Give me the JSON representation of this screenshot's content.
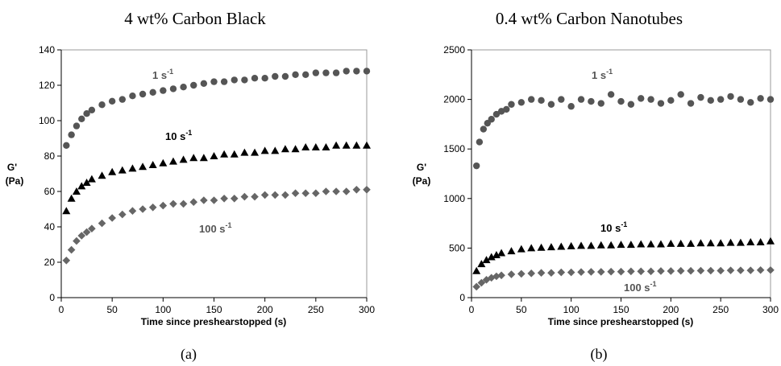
{
  "chart_data": [
    {
      "type": "scatter",
      "title": "4 wt% Carbon Black",
      "caption": "(a)",
      "xlabel": "Time since preshearstopped (s)",
      "ylabel_line1": "G'",
      "ylabel_line2": "(Pa)",
      "xlim": [
        0,
        300
      ],
      "ylim": [
        0,
        140
      ],
      "xticks": [
        0,
        50,
        100,
        150,
        200,
        250,
        300
      ],
      "yticks": [
        0,
        20,
        40,
        60,
        80,
        100,
        120,
        140
      ],
      "grid": false,
      "series": [
        {
          "name": "1 s-1",
          "label_base": "1 s",
          "label_sup": "-1",
          "marker": "circle",
          "color": "#555555",
          "x": [
            5,
            10,
            15,
            20,
            25,
            30,
            40,
            50,
            60,
            70,
            80,
            90,
            100,
            110,
            120,
            130,
            140,
            150,
            160,
            170,
            180,
            190,
            200,
            210,
            220,
            230,
            240,
            250,
            260,
            270,
            280,
            290,
            300
          ],
          "y": [
            86,
            92,
            97,
            101,
            104,
            106,
            109,
            111,
            112,
            114,
            115,
            116,
            117,
            118,
            119,
            120,
            121,
            122,
            122,
            123,
            123,
            124,
            124,
            125,
            125,
            126,
            126,
            127,
            127,
            127,
            128,
            128,
            128
          ]
        },
        {
          "name": "10 s-1",
          "label_base": "10 s",
          "label_sup": "-1",
          "marker": "triangle",
          "color": "#000000",
          "x": [
            5,
            10,
            15,
            20,
            25,
            30,
            40,
            50,
            60,
            70,
            80,
            90,
            100,
            110,
            120,
            130,
            140,
            150,
            160,
            170,
            180,
            190,
            200,
            210,
            220,
            230,
            240,
            250,
            260,
            270,
            280,
            290,
            300
          ],
          "y": [
            49,
            56,
            60,
            63,
            65,
            67,
            69,
            71,
            72,
            73,
            74,
            75,
            76,
            77,
            78,
            79,
            79,
            80,
            81,
            81,
            82,
            82,
            83,
            83,
            84,
            84,
            85,
            85,
            85,
            86,
            86,
            86,
            86
          ]
        },
        {
          "name": "100 s-1",
          "label_base": "100 s",
          "label_sup": "-1",
          "marker": "diamond",
          "color": "#666666",
          "x": [
            5,
            10,
            15,
            20,
            25,
            30,
            40,
            50,
            60,
            70,
            80,
            90,
            100,
            110,
            120,
            130,
            140,
            150,
            160,
            170,
            180,
            190,
            200,
            210,
            220,
            230,
            240,
            250,
            260,
            270,
            280,
            290,
            300
          ],
          "y": [
            21,
            27,
            32,
            35,
            37,
            39,
            42,
            45,
            47,
            49,
            50,
            51,
            52,
            53,
            53,
            54,
            55,
            55,
            56,
            56,
            57,
            57,
            58,
            58,
            58,
            59,
            59,
            59,
            60,
            60,
            60,
            61,
            61
          ]
        }
      ]
    },
    {
      "type": "scatter",
      "title": "0.4 wt% Carbon Nanotubes",
      "caption": "(b)",
      "xlabel": "Time since preshearstopped (s)",
      "ylabel_line1": "G'",
      "ylabel_line2": "(Pa)",
      "xlim": [
        0,
        300
      ],
      "ylim": [
        0,
        2500
      ],
      "xticks": [
        0,
        50,
        100,
        150,
        200,
        250,
        300
      ],
      "yticks": [
        0,
        500,
        1000,
        1500,
        2000,
        2500
      ],
      "grid": false,
      "series": [
        {
          "name": "1 s-1",
          "label_base": "1 s",
          "label_sup": "-1",
          "marker": "circle",
          "color": "#555555",
          "x": [
            5,
            8,
            12,
            16,
            20,
            25,
            30,
            35,
            40,
            50,
            60,
            70,
            80,
            90,
            100,
            110,
            120,
            130,
            140,
            150,
            160,
            170,
            180,
            190,
            200,
            210,
            220,
            230,
            240,
            250,
            260,
            270,
            280,
            290,
            300
          ],
          "y": [
            1330,
            1570,
            1700,
            1760,
            1800,
            1850,
            1880,
            1900,
            1950,
            1970,
            2000,
            1990,
            1950,
            2000,
            1930,
            2000,
            1980,
            1960,
            2050,
            1980,
            1950,
            2010,
            2000,
            1960,
            1990,
            2050,
            1960,
            2020,
            1990,
            2000,
            2030,
            2000,
            1970,
            2010,
            2000
          ]
        },
        {
          "name": "10 s-1",
          "label_base": "10 s",
          "label_sup": "-1",
          "marker": "triangle",
          "color": "#000000",
          "x": [
            5,
            10,
            15,
            20,
            25,
            30,
            40,
            50,
            60,
            70,
            80,
            90,
            100,
            110,
            120,
            130,
            140,
            150,
            160,
            170,
            180,
            190,
            200,
            210,
            220,
            230,
            240,
            250,
            260,
            270,
            280,
            290,
            300
          ],
          "y": [
            270,
            340,
            380,
            410,
            430,
            450,
            470,
            490,
            500,
            505,
            510,
            515,
            520,
            525,
            525,
            530,
            530,
            535,
            535,
            540,
            540,
            540,
            545,
            545,
            545,
            550,
            550,
            550,
            555,
            555,
            560,
            560,
            570
          ]
        },
        {
          "name": "100 s-1",
          "label_base": "100 s",
          "label_sup": "-1",
          "marker": "diamond",
          "color": "#666666",
          "x": [
            5,
            10,
            15,
            20,
            25,
            30,
            40,
            50,
            60,
            70,
            80,
            90,
            100,
            110,
            120,
            130,
            140,
            150,
            160,
            170,
            180,
            190,
            200,
            210,
            220,
            230,
            240,
            250,
            260,
            270,
            280,
            290,
            300
          ],
          "y": [
            110,
            150,
            180,
            200,
            215,
            225,
            235,
            240,
            245,
            250,
            250,
            255,
            255,
            258,
            260,
            260,
            262,
            262,
            265,
            265,
            265,
            268,
            268,
            270,
            270,
            272,
            272,
            272,
            275,
            275,
            275,
            278,
            278
          ]
        }
      ]
    }
  ]
}
